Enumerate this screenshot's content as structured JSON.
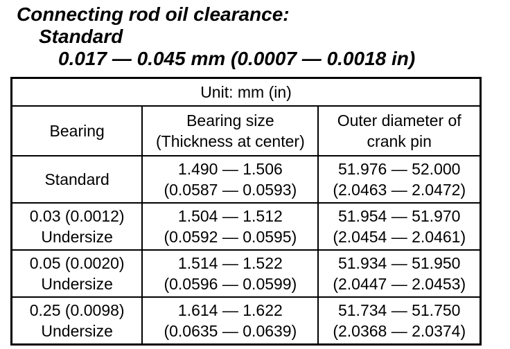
{
  "page": {
    "heading": {
      "title": "Connecting rod oil clearance:",
      "sub_label": "Standard",
      "sub_value": "0.017 — 0.045 mm (0.0007 — 0.0018 in)"
    },
    "table": {
      "unit_label": "Unit: mm (in)",
      "columns": [
        "Bearing",
        "Bearing size\n(Thickness at center)",
        "Outer diameter of\ncrank pin"
      ],
      "rows": [
        {
          "bearing": "Standard",
          "size": "1.490 — 1.506\n(0.0587 — 0.0593)",
          "diameter": "51.976 — 52.000\n(2.0463 — 2.0472)"
        },
        {
          "bearing": "0.03 (0.0012)\nUndersize",
          "size": "1.504 — 1.512\n(0.0592 — 0.0595)",
          "diameter": "51.954 — 51.970\n(2.0454 — 2.0461)"
        },
        {
          "bearing": "0.05 (0.0020)\nUndersize",
          "size": "1.514 — 1.522\n(0.0596 — 0.0599)",
          "diameter": "51.934 — 51.950\n(2.0447 — 2.0453)"
        },
        {
          "bearing": "0.25 (0.0098)\nUndersize",
          "size": "1.614 — 1.622\n(0.0635 — 0.0639)",
          "diameter": "51.734 — 51.750\n(2.0368 — 2.0374)"
        }
      ]
    },
    "text_color": "#000000",
    "background_color": "#ffffff"
  }
}
